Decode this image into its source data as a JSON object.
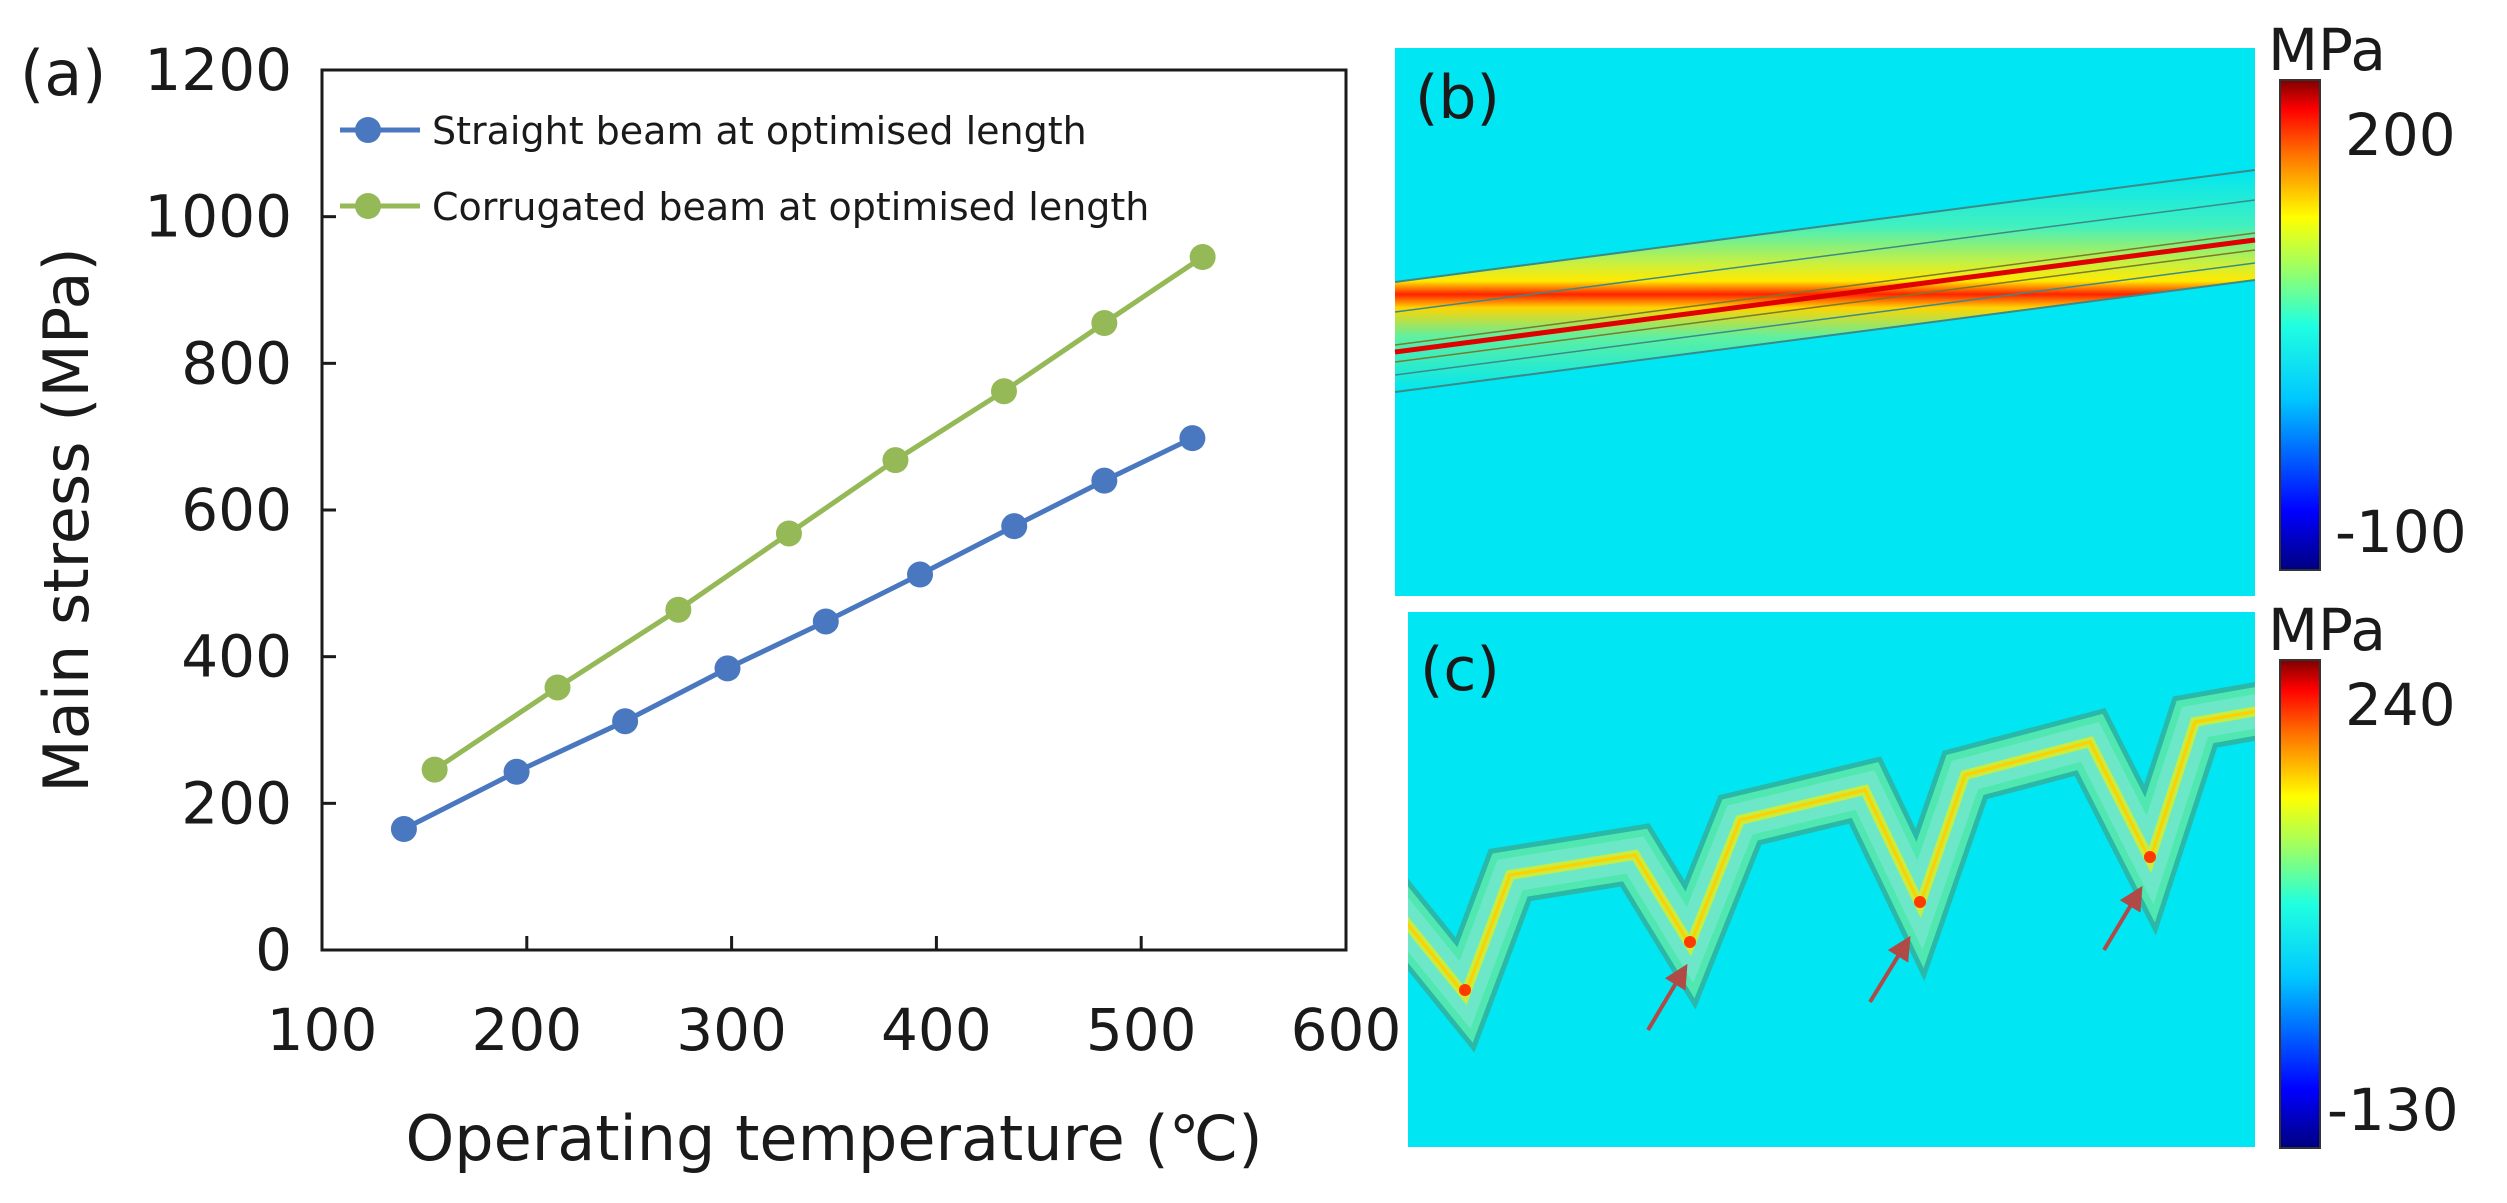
{
  "panel_labels": {
    "a": "(a)",
    "b": "(b)",
    "c": "(c)"
  },
  "chart_data": [
    {
      "type": "line",
      "title": "",
      "xlabel": "Operating temperature (℃)",
      "ylabel": "Main stress  (MPa)",
      "xlim": [
        100,
        600
      ],
      "ylim": [
        0,
        1200
      ],
      "xticks": [
        100,
        200,
        300,
        400,
        500,
        600
      ],
      "yticks": [
        0,
        200,
        400,
        600,
        800,
        1000,
        1200
      ],
      "grid": false,
      "legend_position": "top-left",
      "series": [
        {
          "name": "Straight beam at optimised length",
          "color": "#4a78c0",
          "x": [
            140,
            195,
            248,
            298,
            346,
            392,
            438,
            482,
            525
          ],
          "y": [
            165,
            243,
            312,
            384,
            448,
            512,
            578,
            640,
            698
          ]
        },
        {
          "name": "Corrugated beam at optimised length",
          "color": "#95b957",
          "x": [
            155,
            215,
            274,
            328,
            380,
            433,
            482,
            530
          ],
          "y": [
            246,
            358,
            464,
            568,
            668,
            762,
            855,
            945
          ]
        }
      ]
    },
    {
      "type": "heatmap",
      "title": "(b)",
      "description_kind": "stress contour, straight beam",
      "colorbar": {
        "unit": "MPa",
        "max_label": "200",
        "min_label": "-100"
      }
    },
    {
      "type": "heatmap",
      "title": "(c)",
      "description_kind": "stress contour, corrugated beam",
      "colorbar": {
        "unit": "MPa",
        "max_label": "240",
        "min_label": "-130"
      }
    }
  ],
  "colors": {
    "field": "#00e6f2",
    "arrow": "#b04a46",
    "jet": [
      "#00007f",
      "#0000ff",
      "#0080ff",
      "#00ffff",
      "#80ff80",
      "#ffff00",
      "#ff8000",
      "#ff0000",
      "#7f0000"
    ]
  }
}
